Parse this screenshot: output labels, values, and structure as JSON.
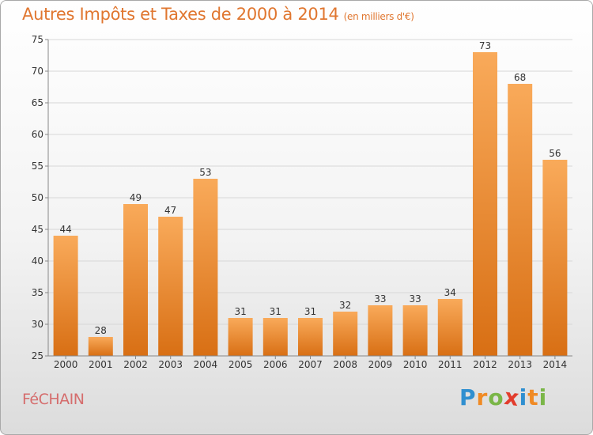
{
  "title": "Autres Impôts et Taxes de 2000 à 2014",
  "subtitle": "(en milliers d'€)",
  "city": "FéCHAIN",
  "brand": {
    "letters": [
      "P",
      "r",
      "o",
      "x",
      "i",
      "t",
      "i"
    ],
    "colors": [
      "#2f8fd0",
      "#f08a24",
      "#7ab648",
      "#e23c2c",
      "#2f8fd0",
      "#f08a24",
      "#7ab648"
    ]
  },
  "colors": {
    "title": "#e0762f",
    "bar_top": "#f9aa5a",
    "bar_bottom": "#d86f14",
    "city": "#d56d6d"
  },
  "chart_data": {
    "type": "bar",
    "categories": [
      "2000",
      "2001",
      "2002",
      "2003",
      "2004",
      "2005",
      "2006",
      "2007",
      "2008",
      "2009",
      "2010",
      "2011",
      "2012",
      "2013",
      "2014"
    ],
    "values": [
      44,
      28,
      49,
      47,
      53,
      31,
      31,
      31,
      32,
      33,
      33,
      34,
      73,
      68,
      56
    ],
    "title": "Autres Impôts et Taxes de 2000 à 2014",
    "subtitle": "(en milliers d'€)",
    "ylim": [
      25,
      75
    ],
    "yticks": [
      25,
      30,
      35,
      40,
      45,
      50,
      55,
      60,
      65,
      70,
      75
    ],
    "grid": true
  }
}
